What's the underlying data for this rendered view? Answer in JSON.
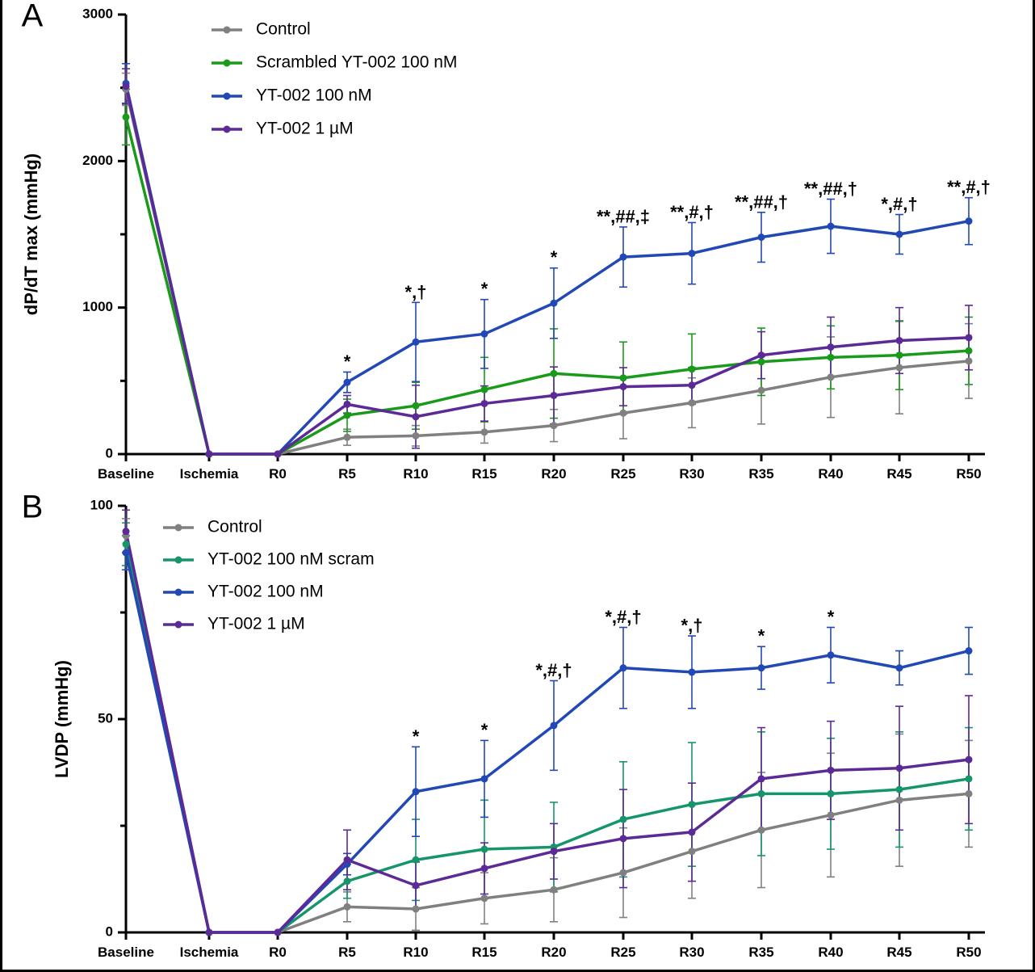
{
  "chart_data": [
    {
      "panel_label": "A",
      "type": "line",
      "ylabel": "dP/dT max (mmHg)",
      "ylim": [
        0,
        3000
      ],
      "yticks": [
        0,
        1000,
        2000,
        3000
      ],
      "yticks_labels": [
        "0",
        "1000",
        "2000",
        "3000"
      ],
      "categories": [
        "Baseline",
        "Ischemia",
        "R0",
        "R5",
        "R10",
        "R15",
        "R20",
        "R25",
        "R30",
        "R35",
        "R40",
        "R45",
        "R50"
      ],
      "legend_position": "top-left",
      "series": [
        {
          "name": "Control",
          "color": "#808080",
          "values": [
            2490,
            0,
            0,
            115,
            125,
            150,
            195,
            280,
            350,
            435,
            525,
            590,
            635
          ],
          "errors": [
            110,
            0,
            0,
            55,
            70,
            75,
            110,
            175,
            170,
            230,
            275,
            315,
            255
          ]
        },
        {
          "name": "Scrambled YT-002 100 nM",
          "color": "#1a9a1a",
          "values": [
            2300,
            0,
            0,
            265,
            330,
            440,
            550,
            520,
            580,
            630,
            660,
            675,
            705
          ],
          "errors": [
            190,
            0,
            0,
            110,
            160,
            220,
            305,
            245,
            240,
            230,
            215,
            235,
            230
          ]
        },
        {
          "name": "YT-002 100 nM",
          "color": "#2148b4",
          "values": [
            2530,
            0,
            0,
            490,
            765,
            820,
            1030,
            1345,
            1370,
            1480,
            1555,
            1500,
            1590
          ],
          "errors": [
            135,
            0,
            0,
            70,
            270,
            235,
            240,
            205,
            210,
            170,
            185,
            135,
            160
          ]
        },
        {
          "name": "YT-002 1 µM",
          "color": "#5b2a96",
          "values": [
            2510,
            0,
            0,
            340,
            255,
            345,
            400,
            460,
            470,
            675,
            730,
            775,
            795
          ],
          "errors": [
            120,
            0,
            0,
            60,
            215,
            120,
            195,
            130,
            120,
            160,
            205,
            225,
            220
          ]
        }
      ],
      "annotations": [
        {
          "category": "R5",
          "text": "*"
        },
        {
          "category": "R10",
          "text": "*,†"
        },
        {
          "category": "R15",
          "text": "*"
        },
        {
          "category": "R20",
          "text": "*"
        },
        {
          "category": "R25",
          "text": "**,##,‡"
        },
        {
          "category": "R30",
          "text": "**,#,†"
        },
        {
          "category": "R35",
          "text": "**,##,†"
        },
        {
          "category": "R40",
          "text": "**,##,†"
        },
        {
          "category": "R45",
          "text": "*,#,†"
        },
        {
          "category": "R50",
          "text": "**,#,†"
        }
      ]
    },
    {
      "panel_label": "B",
      "type": "line",
      "ylabel": "LVDP (mmHg)",
      "ylim": [
        0,
        100
      ],
      "yticks": [
        0,
        50,
        100
      ],
      "yticks_labels": [
        "0",
        "50",
        "100"
      ],
      "categories": [
        "Baseline",
        "Ischemia",
        "R0",
        "R5",
        "R10",
        "R15",
        "R20",
        "R25",
        "R30",
        "R35",
        "R40",
        "R45",
        "R50"
      ],
      "legend_position": "top-left",
      "series": [
        {
          "name": "Control",
          "color": "#808080",
          "values": [
            93,
            0,
            0,
            6,
            5.5,
            8,
            10,
            14,
            19,
            24,
            27.5,
            31,
            32.5
          ],
          "errors": [
            4,
            0,
            0,
            3.5,
            5,
            6,
            7.5,
            10.5,
            11,
            13.5,
            14.5,
            15.5,
            12.5
          ]
        },
        {
          "name": "YT-002 100 nM scram",
          "color": "#16956a",
          "values": [
            91,
            0,
            0,
            12,
            17,
            19.5,
            20,
            26.5,
            30,
            32.5,
            32.5,
            33.5,
            36
          ],
          "errors": [
            5,
            0,
            0,
            4,
            9.5,
            11.5,
            10.5,
            13.5,
            14.5,
            14.5,
            13,
            13.5,
            12
          ]
        },
        {
          "name": "YT-002 100 nM",
          "color": "#2148b4",
          "values": [
            89,
            0,
            0,
            16,
            33,
            36,
            48.5,
            62,
            61,
            62,
            65,
            62,
            66
          ],
          "errors": [
            4,
            0,
            0,
            2.5,
            10.5,
            9,
            10.5,
            9.5,
            8.5,
            5,
            6.5,
            4,
            5.5
          ]
        },
        {
          "name": "YT-002 1 µM",
          "color": "#5b2a96",
          "values": [
            94,
            0,
            0,
            17,
            11,
            15,
            19,
            22,
            23.5,
            36,
            38,
            38.5,
            40.5
          ],
          "errors": [
            5,
            0,
            0,
            7,
            5.5,
            6,
            6.5,
            11.5,
            11.5,
            12,
            11.5,
            14.5,
            15
          ]
        }
      ],
      "annotations": [
        {
          "category": "R10",
          "text": "*"
        },
        {
          "category": "R15",
          "text": "*"
        },
        {
          "category": "R20",
          "text": "*,#,†"
        },
        {
          "category": "R25",
          "text": "*,#,†"
        },
        {
          "category": "R30",
          "text": "*,†"
        },
        {
          "category": "R35",
          "text": "*"
        },
        {
          "category": "R40",
          "text": "*"
        }
      ]
    }
  ]
}
